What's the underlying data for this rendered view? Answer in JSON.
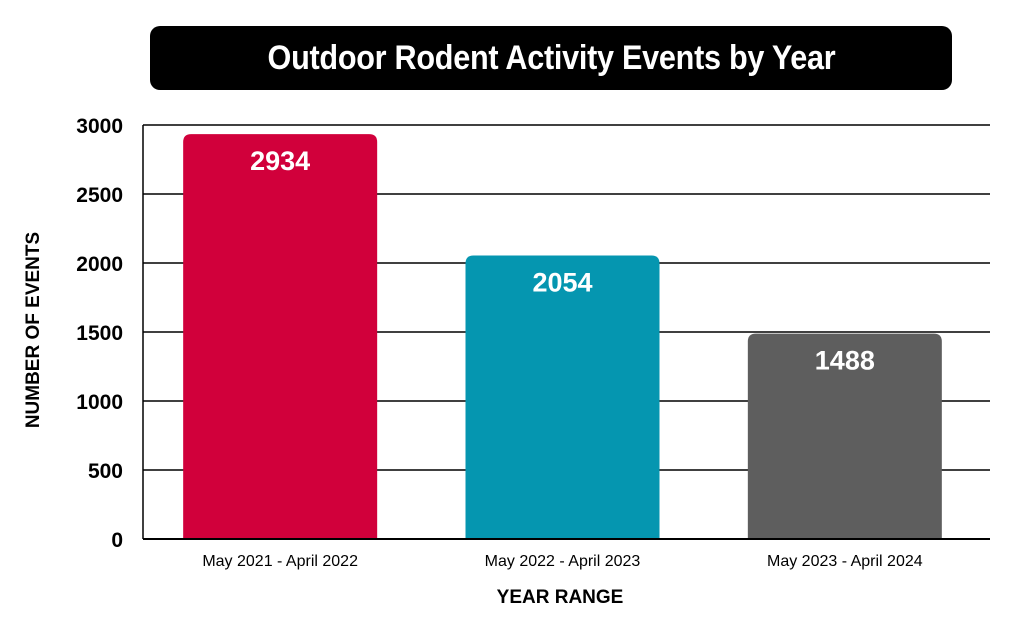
{
  "chart_data": {
    "type": "bar",
    "title": "Outdoor Rodent Activity Events by Year",
    "xlabel": "YEAR RANGE",
    "ylabel": "NUMBER OF EVENTS",
    "categories": [
      "May 2021 - April 2022",
      "May 2022 - April 2023",
      "May 2023 - April 2024"
    ],
    "values": [
      2934,
      2054,
      1488
    ],
    "value_labels": [
      "2934",
      "2054",
      "1488"
    ],
    "colors": [
      "#d1003b",
      "#0596b0",
      "#5e5e5e"
    ],
    "ylim": [
      0,
      3000
    ],
    "yticks": [
      0,
      500,
      1000,
      1500,
      2000,
      2500,
      3000
    ],
    "ytick_labels": [
      "0",
      "500",
      "1000",
      "1500",
      "2000",
      "2500",
      "3000"
    ],
    "grid": true
  }
}
